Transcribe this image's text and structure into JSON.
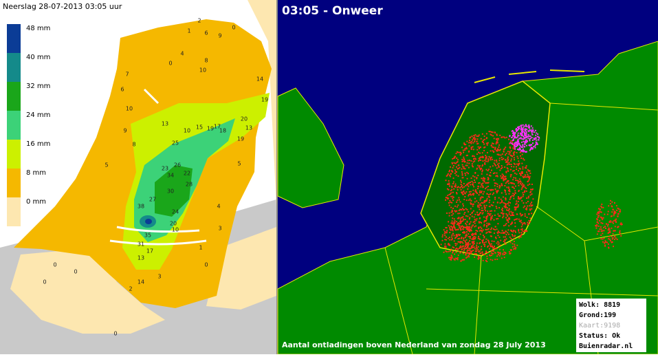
{
  "left_panel": {
    "title": "Neerslag 28-07-2013  03:05 uur",
    "legend": [
      {
        "label": "48 mm",
        "color": "#0b3c96"
      },
      {
        "label": "40 mm",
        "color": "#148a8a"
      },
      {
        "label": "32 mm",
        "color": "#1aa61a"
      },
      {
        "label": "24 mm",
        "color": "#3cd278"
      },
      {
        "label": "16 mm",
        "color": "#ccf000"
      },
      {
        "label": "8 mm",
        "color": "#f5b800"
      },
      {
        "label": "0 mm",
        "color": "#fde7b0"
      }
    ],
    "station_labels": [
      "2",
      "0",
      "1",
      "6",
      "9",
      "4",
      "0",
      "8",
      "10",
      "7",
      "6",
      "10",
      "9",
      "8",
      "5",
      "13",
      "10",
      "15",
      "19",
      "17",
      "18",
      "20",
      "13",
      "19",
      "14",
      "19",
      "25",
      "23",
      "26",
      "34",
      "22",
      "28",
      "30",
      "38",
      "27",
      "24",
      "20",
      "10",
      "35",
      "31",
      "17",
      "13",
      "14",
      "3",
      "2",
      "0",
      "0",
      "0",
      "0",
      "4",
      "5",
      "3",
      "1",
      "0"
    ]
  },
  "right_panel": {
    "title": "03:05 - Onweer",
    "caption": "Aantal ontladingen boven Nederland van zondag 28 July 2013",
    "info": [
      "Wolk: 8819",
      "Grond:199",
      "Kaart:9198",
      "Status: Ok",
      "Buienradar.nl"
    ]
  }
}
